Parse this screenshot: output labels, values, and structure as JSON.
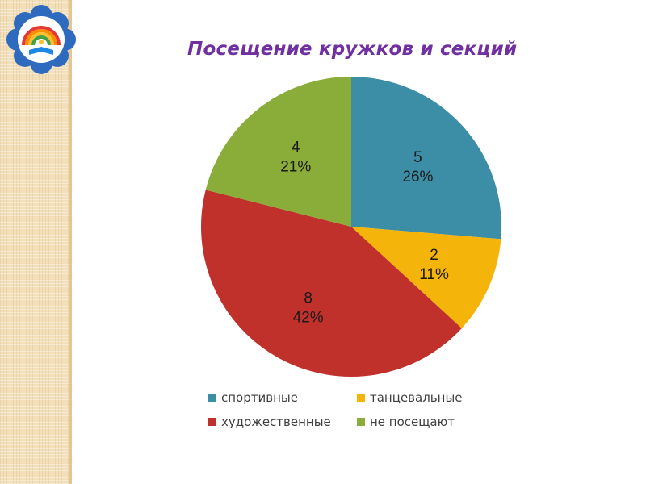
{
  "title": "Посещение кружков и секций",
  "chart_data": {
    "type": "pie",
    "title": "Посещение кружков и секций",
    "legend_position": "bottom",
    "start_angle_deg": 0,
    "direction": "clockwise",
    "slices": [
      {
        "name": "спортивные",
        "value": 5,
        "percent": "26%",
        "color": "#3b8ea5"
      },
      {
        "name": "танцевальные",
        "value": 2,
        "percent": "11%",
        "color": "#f5b40a"
      },
      {
        "name": "художественные",
        "value": 8,
        "percent": "42%",
        "color": "#c0312c"
      },
      {
        "name": "не посещают",
        "value": 4,
        "percent": "21%",
        "color": "#8aac38"
      }
    ]
  },
  "logo": {
    "name": "school-logo",
    "colors": [
      "#2e6bbf",
      "#e53935",
      "#fbc02d",
      "#43a047",
      "#ffffff"
    ]
  }
}
